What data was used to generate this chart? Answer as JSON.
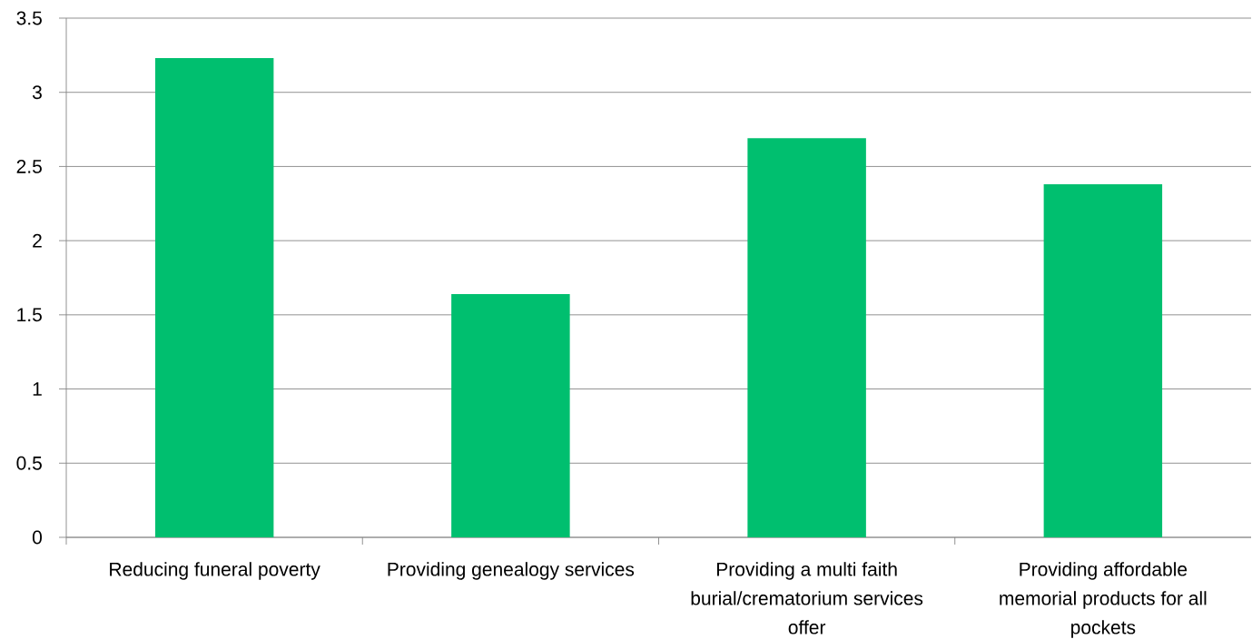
{
  "chart_data": {
    "type": "bar",
    "categories": [
      "Reducing funeral poverty",
      "Providing genealogy services",
      "Providing a multi faith burial/crematorium services offer",
      "Providing affordable memorial products for all pockets"
    ],
    "values": [
      3.23,
      1.64,
      2.69,
      2.38
    ],
    "color": "#00bf6f",
    "ylim": [
      0,
      3.5
    ],
    "yticks": [
      0,
      0.5,
      1,
      1.5,
      2,
      2.5,
      3,
      3.5
    ],
    "grid": "y"
  }
}
